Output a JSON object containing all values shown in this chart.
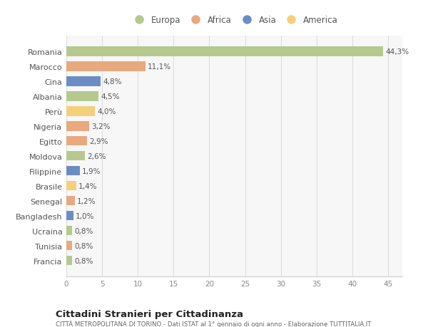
{
  "countries": [
    "Romania",
    "Marocco",
    "Cina",
    "Albania",
    "Perù",
    "Nigeria",
    "Egitto",
    "Moldova",
    "Filippine",
    "Brasile",
    "Senegal",
    "Bangladesh",
    "Ucraina",
    "Tunisia",
    "Francia"
  ],
  "values": [
    44.3,
    11.1,
    4.8,
    4.5,
    4.0,
    3.2,
    2.9,
    2.6,
    1.9,
    1.4,
    1.2,
    1.0,
    0.8,
    0.8,
    0.8
  ],
  "labels": [
    "44,3%",
    "11,1%",
    "4,8%",
    "4,5%",
    "4,0%",
    "3,2%",
    "2,9%",
    "2,6%",
    "1,9%",
    "1,4%",
    "1,2%",
    "1,0%",
    "0,8%",
    "0,8%",
    "0,8%"
  ],
  "continent": [
    "Europa",
    "Africa",
    "Asia",
    "Europa",
    "America",
    "Africa",
    "Africa",
    "Europa",
    "Asia",
    "America",
    "Africa",
    "Asia",
    "Europa",
    "Africa",
    "Europa"
  ],
  "colors": {
    "Europa": "#b5c98e",
    "Africa": "#e8a97e",
    "Asia": "#6b8dc4",
    "America": "#f5d07a"
  },
  "legend_order": [
    "Europa",
    "Africa",
    "Asia",
    "America"
  ],
  "background_color": "#ffffff",
  "plot_bg_color": "#f7f7f7",
  "title": "Cittadini Stranieri per Cittadinanza",
  "subtitle": "CITTÀ METROPOLITANA DI TORINO - Dati ISTAT al 1° gennaio di ogni anno - Elaborazione TUTTITALIA.IT",
  "xlim": [
    0,
    47
  ],
  "xticks": [
    0,
    5,
    10,
    15,
    20,
    25,
    30,
    35,
    40,
    45
  ],
  "bar_height": 0.65
}
